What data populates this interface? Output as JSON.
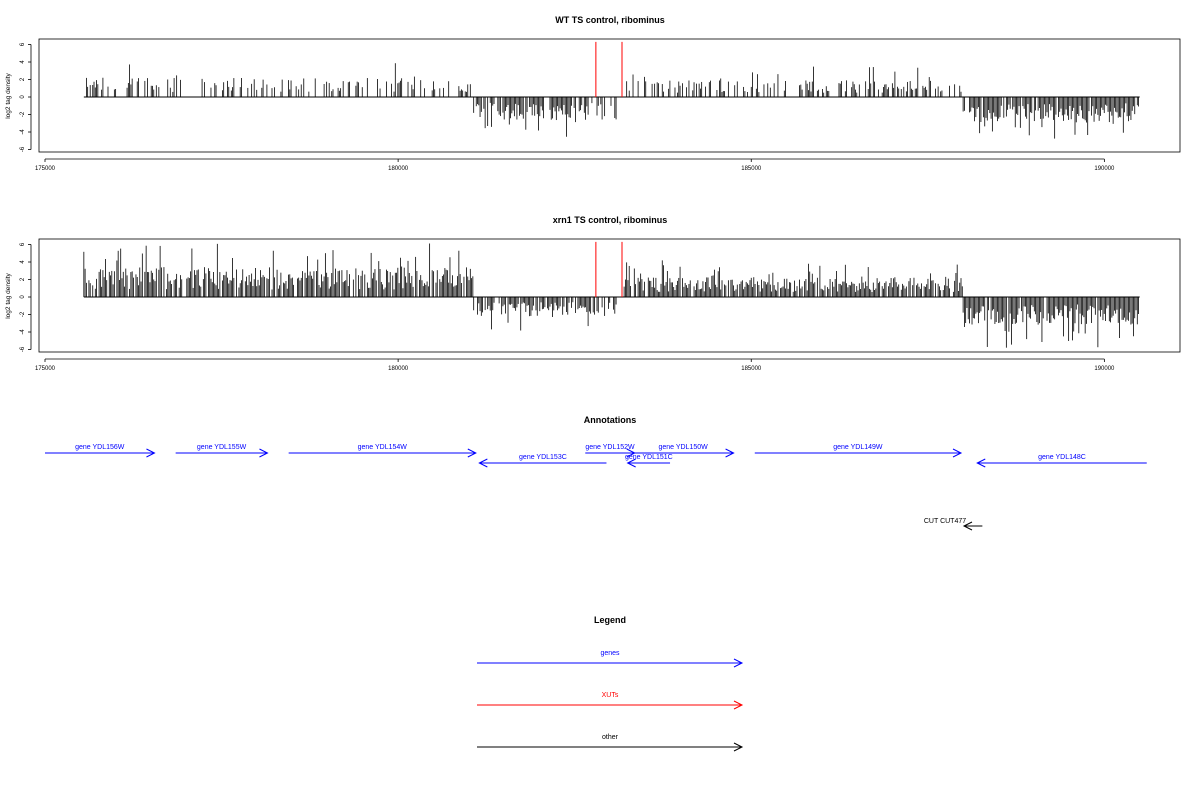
{
  "colors": {
    "gene": "#0000ff",
    "xut": "#ff0000",
    "other": "#000000",
    "marker": "#ff0000",
    "bar": "#000000"
  },
  "chart_data": [
    {
      "type": "bar",
      "title": "WT TS control, ribominus",
      "ylabel": "log2 tag density",
      "xlim": [
        175000,
        191000
      ],
      "ylim": [
        -6,
        6
      ],
      "x_ticks": [
        "175000",
        "180000",
        "185000",
        "190000"
      ],
      "y_ticks": [
        "6",
        "4",
        "2",
        "0",
        "-2",
        "-4",
        "-6"
      ],
      "red_markers_x": [
        182800,
        183170
      ],
      "segments": [
        {
          "start": 175550,
          "end": 181070,
          "sign": 1,
          "density": 0.35,
          "max": 4.0
        },
        {
          "start": 181070,
          "end": 183100,
          "sign": -1,
          "density": 0.75,
          "max": 4.8
        },
        {
          "start": 183200,
          "end": 188000,
          "sign": 1,
          "density": 0.45,
          "max": 3.5
        },
        {
          "start": 188000,
          "end": 190500,
          "sign": -1,
          "density": 0.9,
          "max": 5.2
        }
      ]
    },
    {
      "type": "bar",
      "title": "xrn1 TS control, ribominus",
      "ylabel": "log2 tag density",
      "xlim": [
        175000,
        191000
      ],
      "ylim": [
        -6,
        6
      ],
      "x_ticks": [
        "175000",
        "180000",
        "185000",
        "190000"
      ],
      "y_ticks": [
        "6",
        "4",
        "2",
        "0",
        "-2",
        "-4",
        "-6"
      ],
      "red_markers_x": [
        182800,
        183170
      ],
      "segments": [
        {
          "start": 175550,
          "end": 181070,
          "sign": 1,
          "density": 0.85,
          "max": 6.2
        },
        {
          "start": 181070,
          "end": 183100,
          "sign": -1,
          "density": 0.75,
          "max": 4.0
        },
        {
          "start": 183200,
          "end": 188000,
          "sign": 1,
          "density": 0.9,
          "max": 4.2
        },
        {
          "start": 188000,
          "end": 190500,
          "sign": -1,
          "density": 0.95,
          "max": 5.8
        }
      ]
    }
  ],
  "annotations": {
    "title": "Annotations",
    "genes": [
      {
        "label": "gene YDL156W",
        "start": 175000,
        "end": 176550,
        "strand": "+",
        "row": 0
      },
      {
        "label": "gene YDL155W",
        "start": 176850,
        "end": 178150,
        "strand": "+",
        "row": 0
      },
      {
        "label": "gene YDL154W",
        "start": 178450,
        "end": 181100,
        "strand": "+",
        "row": 0
      },
      {
        "label": "gene YDL153C",
        "start": 181150,
        "end": 182950,
        "strand": "-",
        "row": 1
      },
      {
        "label": "gene YDL152W",
        "start": 182650,
        "end": 183350,
        "strand": "+",
        "row": 0
      },
      {
        "label": "gene YDL151C",
        "start": 183250,
        "end": 183850,
        "strand": "-",
        "row": 1
      },
      {
        "label": "gene YDL150W",
        "start": 183320,
        "end": 184750,
        "strand": "+",
        "row": 0
      },
      {
        "label": "gene YDL149W",
        "start": 185050,
        "end": 187970,
        "strand": "+",
        "row": 0
      },
      {
        "label": "gene YDL148C",
        "start": 188200,
        "end": 190600,
        "strand": "-",
        "row": 1
      }
    ],
    "other_label": "CUT CUT477",
    "other": {
      "start": 187800,
      "end": 188060,
      "strand": "-"
    }
  },
  "legend": {
    "title": "Legend",
    "items": [
      {
        "label": "genes",
        "color": "#0000ff"
      },
      {
        "label": "XUTs",
        "color": "#ff0000"
      },
      {
        "label": "other",
        "color": "#000000"
      }
    ]
  }
}
